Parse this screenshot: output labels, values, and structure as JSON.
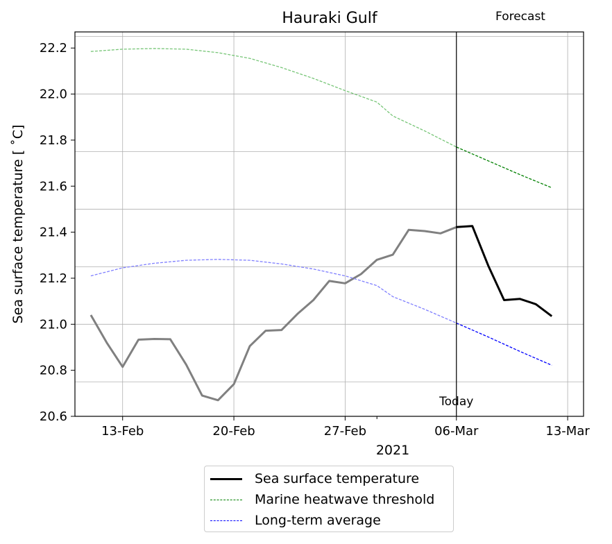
{
  "chart_data": {
    "type": "line",
    "title": "Hauraki Gulf",
    "xlabel": "2021",
    "ylabel": "Sea surface temperature [$^\\circ$C]",
    "ylabel_display": "Sea surface temperature [ ˚C]",
    "ylim": [
      20.6,
      22.27
    ],
    "xlim": [
      "2021-02-10",
      "2021-03-14"
    ],
    "grid": true,
    "x_ticks": [
      "13-Feb",
      "20-Feb",
      "27-Feb",
      "06-Mar",
      "13-Mar"
    ],
    "y_ticks": [
      "20.6",
      "20.8",
      "21.0",
      "21.2",
      "21.4",
      "21.6",
      "21.8",
      "22.0",
      "22.2"
    ],
    "today": "2021-03-06",
    "today_label": "Today",
    "forecast_label": "Forecast",
    "legend_position": "bottom-center",
    "series": [
      {
        "name": "Sea surface temperature",
        "color_past": "#808080",
        "color_forecast": "#000000",
        "style": "solid",
        "x": [
          "2021-02-11",
          "2021-02-12",
          "2021-02-13",
          "2021-02-14",
          "2021-02-15",
          "2021-02-16",
          "2021-02-17",
          "2021-02-18",
          "2021-02-19",
          "2021-02-20",
          "2021-02-21",
          "2021-02-22",
          "2021-02-23",
          "2021-02-24",
          "2021-02-25",
          "2021-02-26",
          "2021-02-27",
          "2021-02-28",
          "2021-03-01",
          "2021-03-02",
          "2021-03-03",
          "2021-03-04",
          "2021-03-05",
          "2021-03-06",
          "2021-03-07",
          "2021-03-08",
          "2021-03-09",
          "2021-03-10",
          "2021-03-11",
          "2021-03-12"
        ],
        "values": [
          21.04,
          20.92,
          20.815,
          20.933,
          20.936,
          20.935,
          20.825,
          20.69,
          20.67,
          20.74,
          20.905,
          20.972,
          20.975,
          21.045,
          21.105,
          21.188,
          21.178,
          21.218,
          21.28,
          21.302,
          21.41,
          21.405,
          21.395,
          21.422,
          21.427,
          21.255,
          21.105,
          21.11,
          21.087,
          21.035
        ]
      },
      {
        "name": "Marine heatwave threshold",
        "color_past": "#76c576",
        "color_forecast": "#008000",
        "style": "dashed",
        "x": [
          "2021-02-11",
          "2021-02-13",
          "2021-02-15",
          "2021-02-17",
          "2021-02-19",
          "2021-02-21",
          "2021-02-23",
          "2021-02-25",
          "2021-02-27",
          "2021-03-01",
          "2021-03-02",
          "2021-03-04",
          "2021-03-06",
          "2021-03-08",
          "2021-03-10",
          "2021-03-12"
        ],
        "values": [
          22.185,
          22.195,
          22.198,
          22.195,
          22.18,
          22.155,
          22.115,
          22.068,
          22.015,
          21.965,
          21.905,
          21.84,
          21.77,
          21.71,
          21.65,
          21.593
        ]
      },
      {
        "name": "Long-term average",
        "color_past": "#7f7fff",
        "color_forecast": "#0000ff",
        "style": "dashed",
        "x": [
          "2021-02-11",
          "2021-02-13",
          "2021-02-15",
          "2021-02-17",
          "2021-02-19",
          "2021-02-21",
          "2021-02-23",
          "2021-02-25",
          "2021-02-27",
          "2021-03-01",
          "2021-03-02",
          "2021-03-04",
          "2021-03-06",
          "2021-03-08",
          "2021-03-10",
          "2021-03-12"
        ],
        "values": [
          21.21,
          21.245,
          21.265,
          21.278,
          21.282,
          21.278,
          21.262,
          21.24,
          21.21,
          21.168,
          21.12,
          21.065,
          21.005,
          20.945,
          20.882,
          20.822
        ]
      }
    ]
  }
}
